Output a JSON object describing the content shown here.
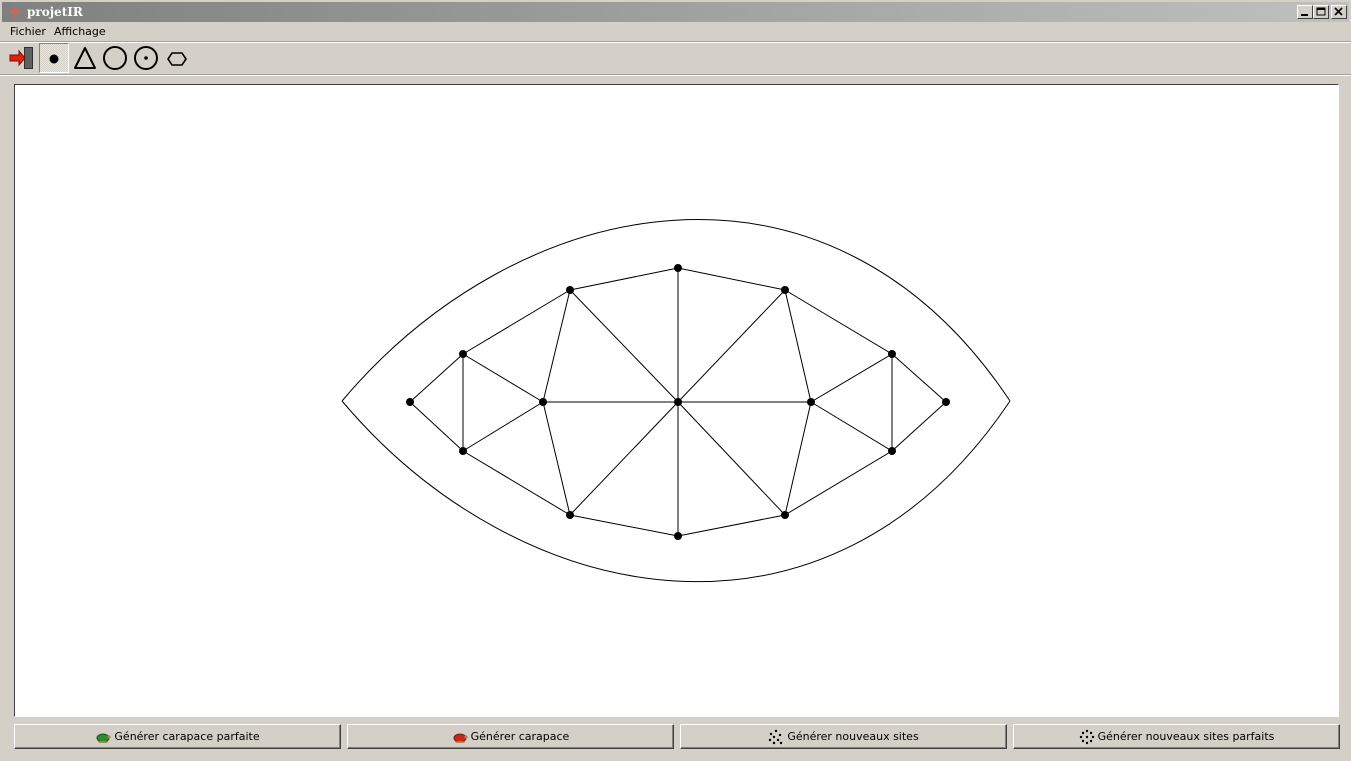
{
  "window": {
    "title": "projetIR"
  },
  "menu": [
    {
      "label": "Fichier"
    },
    {
      "label": "Affichage"
    }
  ],
  "toolbar": {
    "tools": [
      {
        "icon": "exit-icon"
      },
      {
        "icon": "point-icon",
        "selected": true
      },
      {
        "icon": "triangle-icon"
      },
      {
        "icon": "circle-icon"
      },
      {
        "icon": "circle-center-icon"
      },
      {
        "icon": "hexagon-icon"
      }
    ]
  },
  "buttons": [
    {
      "label": "Générer carapace parfaite",
      "icon": "turtle-green-icon"
    },
    {
      "label": "Générer carapace",
      "icon": "turtle-red-icon"
    },
    {
      "label": "Générer nouveaux sites",
      "icon": "scatter-dots-icon"
    },
    {
      "label": "Générer nouveaux sites parfaits",
      "icon": "regular-dots-icon"
    }
  ]
}
